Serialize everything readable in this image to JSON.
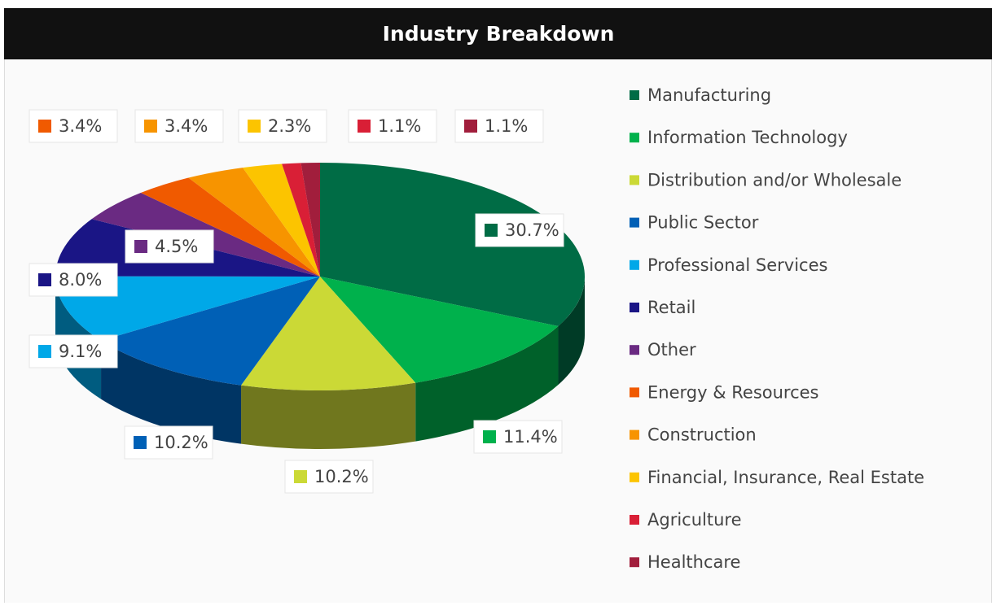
{
  "chart_data": {
    "type": "pie",
    "title": "Industry Breakdown",
    "categories": [
      "Manufacturing",
      "Information Technology",
      "Distribution and/or Wholesale",
      "Public Sector",
      "Professional Services",
      "Retail",
      "Other",
      "Energy & Resources",
      "Construction",
      "Financial, Insurance, Real Estate",
      "Agriculture",
      "Healthcare"
    ],
    "values": [
      30.7,
      11.4,
      10.2,
      10.2,
      9.1,
      8.0,
      4.5,
      3.4,
      3.4,
      2.3,
      1.1,
      1.1
    ],
    "value_labels": [
      "30.7%",
      "11.4%",
      "10.2%",
      "10.2%",
      "9.1%",
      "8.0%",
      "4.5%",
      "3.4%",
      "3.4%",
      "2.3%",
      "1.1%",
      "1.1%"
    ],
    "colors": [
      "#006c45",
      "#00b14c",
      "#cbd936",
      "#0060b6",
      "#00a8e8",
      "#1a1585",
      "#6a2a82",
      "#f05a00",
      "#f79400",
      "#fcc400",
      "#d91f36",
      "#a11e3c"
    ],
    "legend": "right"
  }
}
